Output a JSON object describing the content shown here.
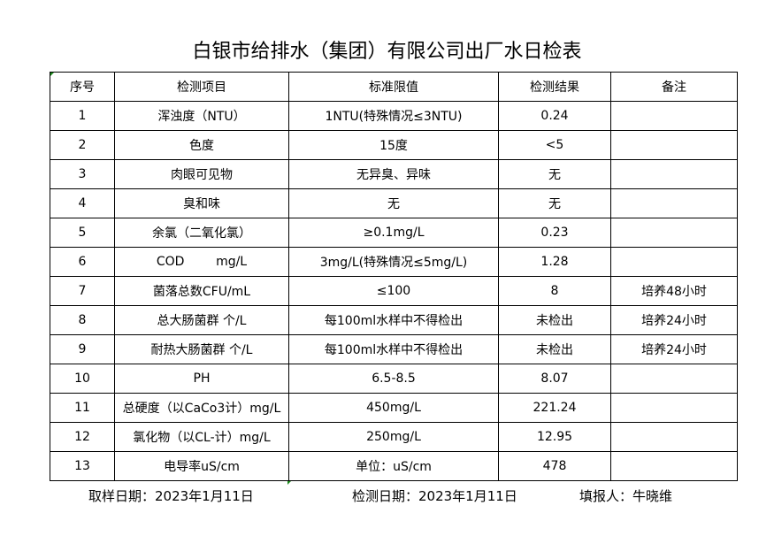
{
  "title": "白银市给排水（集团）有限公司出厂水日检表",
  "headers": [
    "序号",
    "检测项目",
    "标准限值",
    "检测结果",
    "备注"
  ],
  "rows": [
    [
      "1",
      "浑浊度（NTU）",
      "1NTU(特殊情况≤3NTU)",
      "0.24",
      ""
    ],
    [
      "2",
      "色度",
      "15度",
      "<5",
      ""
    ],
    [
      "3",
      "肉眼可见物",
      "无异臭、异味",
      "无",
      ""
    ],
    [
      "4",
      "臭和味",
      "无",
      "无",
      ""
    ],
    [
      "5",
      "余氯（二氧化氯）",
      "≥0.1mg/L",
      "0.23",
      ""
    ],
    [
      "6",
      "COD        mg/L",
      "3mg/L(特殊情况≤5mg/L)",
      "1.28",
      ""
    ],
    [
      "7",
      "菌落总数CFU/mL",
      "≤100",
      "8",
      "培养48小时"
    ],
    [
      "8",
      "总大肠菌群 个/L",
      "每100ml水样中不得检出",
      "未检出",
      "培养24小时"
    ],
    [
      "9",
      "耐热大肠菌群 个/L",
      "每100ml水样中不得检出",
      "未检出",
      "培养24小时"
    ],
    [
      "10",
      "PH",
      "6.5-8.5",
      "8.07",
      ""
    ],
    [
      "11",
      "总硬度（以CaCo3计）mg/L",
      "450mg/L",
      "221.24",
      ""
    ],
    [
      "12",
      "氯化物（以CL-计）mg/L",
      "250mg/L",
      "12.95",
      ""
    ],
    [
      "13",
      "电导率uS/cm",
      "单位：uS/cm",
      "478",
      ""
    ]
  ],
  "footer": {
    "sampling": "取样日期：2023年1月11日",
    "testing": "检测日期：2023年1月11日",
    "reporter": "填报人：牛晓维"
  }
}
